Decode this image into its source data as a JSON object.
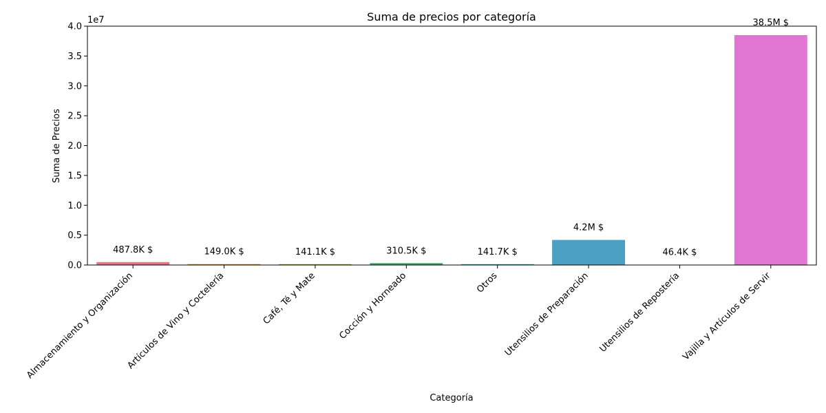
{
  "chart_data": {
    "type": "bar",
    "title": "Suma de precios por categoría",
    "xlabel": "Categoría",
    "ylabel": "Suma de Precios",
    "y_offset_label": "1e7",
    "y_multiplier": 10000000,
    "ylim": [
      0,
      40000000
    ],
    "yticks": [
      0,
      5000000,
      10000000,
      15000000,
      20000000,
      25000000,
      30000000,
      35000000,
      40000000
    ],
    "ytick_labels": [
      "0.0",
      "0.5",
      "1.0",
      "1.5",
      "2.0",
      "2.5",
      "3.0",
      "3.5",
      "4.0"
    ],
    "grid": false,
    "legend": "none",
    "categories": [
      "Almacenamiento y Organización",
      "Artículos de Vino y Coctelería",
      "Café, Té y Mate",
      "Cocción y Horneado",
      "Otros",
      "Utensilios de Preparación",
      "Utensilios de Repostería",
      "Vajilla y Artículos de Servir"
    ],
    "values": [
      487800,
      149000,
      141100,
      310500,
      141700,
      4200000,
      46400,
      38500000
    ],
    "data_labels": [
      "487.8K $",
      "149.0K $",
      "141.1K $",
      "310.5K $",
      "141.7K $",
      "4.2M $",
      "46.4K $",
      "38.5M $"
    ],
    "colors": [
      "#e8727d",
      "#c88a35",
      "#9a9c33",
      "#3ea865",
      "#3ba39a",
      "#4aa1c4",
      "#a48ee8",
      "#e175d2"
    ]
  }
}
